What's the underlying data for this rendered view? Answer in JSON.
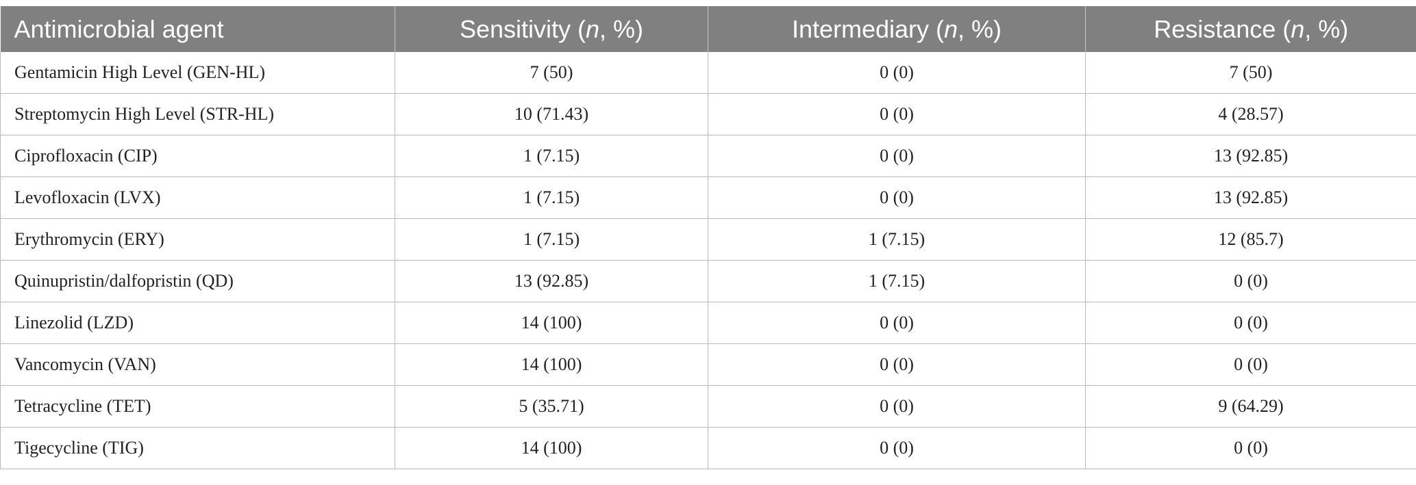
{
  "table": {
    "headers": [
      {
        "pre": "Antimicrobial agent",
        "ital": "",
        "post": ""
      },
      {
        "pre": "Sensitivity (",
        "ital": "n",
        "post": ", %)"
      },
      {
        "pre": "Intermediary (",
        "ital": "n",
        "post": ", %)"
      },
      {
        "pre": "Resistance (",
        "ital": "n",
        "post": ", %)"
      }
    ],
    "rows": [
      [
        "Gentamicin High Level (GEN-HL)",
        "7 (50)",
        "0 (0)",
        "7 (50)"
      ],
      [
        "Streptomycin High Level (STR-HL)",
        "10 (71.43)",
        "0 (0)",
        "4 (28.57)"
      ],
      [
        "Ciprofloxacin (CIP)",
        "1 (7.15)",
        "0 (0)",
        "13 (92.85)"
      ],
      [
        "Levofloxacin (LVX)",
        "1 (7.15)",
        "0 (0)",
        "13 (92.85)"
      ],
      [
        "Erythromycin (ERY)",
        "1 (7.15)",
        "1 (7.15)",
        "12 (85.7)"
      ],
      [
        "Quinupristin/dalfopristin (QD)",
        "13 (92.85)",
        "1 (7.15)",
        "0 (0)"
      ],
      [
        "Linezolid (LZD)",
        "14 (100)",
        "0 (0)",
        "0 (0)"
      ],
      [
        "Vancomycin (VAN)",
        "14 (100)",
        "0 (0)",
        "0 (0)"
      ],
      [
        "Tetracycline (TET)",
        "5 (35.71)",
        "0 (0)",
        "9 (64.29)"
      ],
      [
        "Tigecycline (TIG)",
        "14 (100)",
        "0 (0)",
        "0 (0)"
      ]
    ]
  }
}
